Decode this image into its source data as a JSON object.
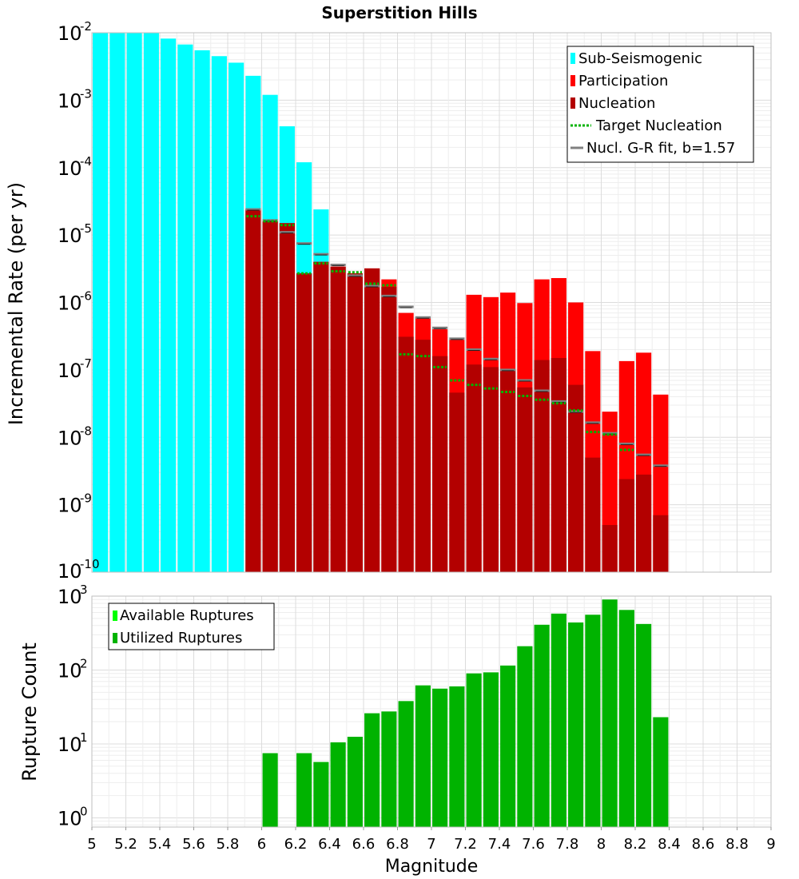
{
  "chart_data": [
    {
      "type": "bar",
      "title": "Superstition Hills",
      "ylabel": "Incremental Rate (per yr)",
      "xlabel": "",
      "xlim": [
        5,
        9
      ],
      "ylim": [
        1e-10,
        0.01
      ],
      "yscale": "log",
      "grid": true,
      "legend_position": "top-right",
      "colors": {
        "sub_seismogenic": "#00ffff",
        "participation": "#ff0000",
        "nucleation": "#b30000",
        "target_nucleation": "#00b300",
        "gr_fit": "#808080"
      },
      "yticks": [
        {
          "base": "10",
          "exp": "-2",
          "value": 0.01
        },
        {
          "base": "10",
          "exp": "-3",
          "value": 0.001
        },
        {
          "base": "10",
          "exp": "-4",
          "value": 0.0001
        },
        {
          "base": "10",
          "exp": "-5",
          "value": 1e-05
        },
        {
          "base": "10",
          "exp": "-6",
          "value": 1e-06
        },
        {
          "base": "10",
          "exp": "-7",
          "value": 1e-07
        },
        {
          "base": "10",
          "exp": "-8",
          "value": 1e-08
        },
        {
          "base": "10",
          "exp": "-9",
          "value": 1e-09
        },
        {
          "base": "10",
          "exp": "-10",
          "value": 1e-10
        }
      ],
      "legend": [
        {
          "label": "Sub-Seismogenic",
          "swatch": "bar",
          "color": "#00ffff"
        },
        {
          "label": "Participation",
          "swatch": "bar",
          "color": "#ff0000"
        },
        {
          "label": "Nucleation",
          "swatch": "bar",
          "color": "#b30000"
        },
        {
          "label": "Target Nucleation",
          "swatch": "dotted",
          "color": "#00b300"
        },
        {
          "label": "Nucl. G-R fit, b=1.57",
          "swatch": "line",
          "color": "#808080"
        }
      ],
      "bar_width": 0.09,
      "series": [
        {
          "name": "Sub-Seismogenic",
          "x": [
            5.05,
            5.15,
            5.25,
            5.35,
            5.45,
            5.55,
            5.65,
            5.75,
            5.85,
            5.95,
            6.05,
            6.15,
            6.25,
            6.35
          ],
          "values": [
            0.01,
            0.01,
            0.01,
            0.01,
            0.0082,
            0.0067,
            0.0055,
            0.0045,
            0.0036,
            0.0023,
            0.0012,
            0.00041,
            0.00012,
            2.4e-05
          ]
        },
        {
          "name": "Participation",
          "x": [
            5.95,
            6.05,
            6.15,
            6.25,
            6.35,
            6.45,
            6.55,
            6.65,
            6.75,
            6.85,
            6.95,
            7.05,
            7.15,
            7.25,
            7.35,
            7.45,
            7.55,
            7.65,
            7.75,
            7.85,
            7.95,
            8.05,
            8.15,
            8.25,
            8.35
          ],
          "values": [
            2.4e-05,
            1.6e-05,
            1.5e-05,
            2.7e-06,
            4e-06,
            3.4e-06,
            2.7e-06,
            3.2e-06,
            2.2e-06,
            7e-07,
            6e-07,
            4e-07,
            2.8e-07,
            1.3e-06,
            1.2e-06,
            1.4e-06,
            9.8e-07,
            2.2e-06,
            2.3e-06,
            1e-06,
            1.9e-07,
            2.4e-08,
            1.35e-07,
            1.8e-07,
            4.3e-08
          ]
        },
        {
          "name": "Nucleation",
          "x": [
            5.95,
            6.05,
            6.15,
            6.25,
            6.35,
            6.45,
            6.55,
            6.65,
            6.75,
            6.85,
            6.95,
            7.05,
            7.15,
            7.25,
            7.35,
            7.45,
            7.55,
            7.65,
            7.75,
            7.85,
            7.95,
            8.05,
            8.15,
            8.25,
            8.35
          ],
          "values": [
            2.4e-05,
            1.6e-05,
            1.5e-05,
            2.7e-06,
            4e-06,
            3.4e-06,
            2.7e-06,
            3.2e-06,
            1.7e-06,
            3.1e-07,
            2.8e-07,
            1.6e-07,
            4.6e-08,
            1.2e-07,
            1.1e-07,
            1e-07,
            5.5e-08,
            1.4e-07,
            1.5e-07,
            6e-08,
            5e-09,
            5e-10,
            2.4e-09,
            2.8e-09,
            7e-10
          ]
        },
        {
          "name": "Target Nucleation",
          "x": [
            5.95,
            6.05,
            6.15,
            6.25,
            6.35,
            6.45,
            6.55,
            6.65,
            6.75,
            6.85,
            6.95,
            7.05,
            7.15,
            7.25,
            7.35,
            7.45,
            7.55,
            7.65,
            7.75,
            7.85,
            7.95,
            8.05,
            8.15,
            8.25
          ],
          "values": [
            1.9e-05,
            1.6e-05,
            1.4e-05,
            2.7e-06,
            3.8e-06,
            2.9e-06,
            2.8e-06,
            1.9e-06,
            1.8e-06,
            1.7e-07,
            1.6e-07,
            1.1e-07,
            7e-08,
            6e-08,
            5.3e-08,
            4.7e-08,
            4.1e-08,
            3.6e-08,
            3.2e-08,
            2.5e-08,
            1.2e-08,
            1.1e-08,
            6.5e-09,
            0
          ]
        },
        {
          "name": "Nucl. G-R fit, b=1.57",
          "x": [
            5.95,
            6.05,
            6.15,
            6.25,
            6.35,
            6.45,
            6.55,
            6.65,
            6.75,
            6.85,
            6.95,
            7.05,
            7.15,
            7.25,
            7.35,
            7.45,
            7.55,
            7.65,
            7.75,
            7.85,
            7.95,
            8.05,
            8.15,
            8.25,
            8.35
          ],
          "values": [
            2.4e-05,
            1.65e-05,
            1.1e-05,
            7.5e-06,
            5.2e-06,
            3.6e-06,
            2.5e-06,
            1.75e-06,
            1.25e-06,
            8.6e-07,
            6e-07,
            4.2e-07,
            2.9e-07,
            2e-07,
            1.45e-07,
            1e-07,
            7e-08,
            4.9e-08,
            3.4e-08,
            2.4e-08,
            1.65e-08,
            1.15e-08,
            8e-09,
            5.5e-09,
            3.8e-09
          ]
        }
      ]
    },
    {
      "type": "bar",
      "title": "",
      "ylabel": "Rupture Count",
      "xlabel": "Magnitude",
      "xlim": [
        5,
        9
      ],
      "ylim": [
        0.75,
        1000
      ],
      "yscale": "log",
      "grid": true,
      "legend_position": "top-left",
      "colors": {
        "available": "#00ff00",
        "utilized": "#00b300"
      },
      "yticks": [
        {
          "base": "10",
          "exp": "3",
          "value": 1000
        },
        {
          "base": "10",
          "exp": "2",
          "value": 100
        },
        {
          "base": "10",
          "exp": "1",
          "value": 10
        },
        {
          "base": "10",
          "exp": "0",
          "value": 1
        }
      ],
      "xticks": [
        "5",
        "5.2",
        "5.4",
        "5.6",
        "5.8",
        "6",
        "6.2",
        "6.4",
        "6.6",
        "6.8",
        "7",
        "7.2",
        "7.4",
        "7.6",
        "7.8",
        "8",
        "8.2",
        "8.4",
        "8.6",
        "8.8",
        "9"
      ],
      "legend": [
        {
          "label": "Available Ruptures",
          "swatch": "bar",
          "color": "#00ff00"
        },
        {
          "label": "Utilized Ruptures",
          "swatch": "bar",
          "color": "#00b300"
        }
      ],
      "bar_width": 0.09,
      "series": [
        {
          "name": "Utilized Ruptures",
          "x": [
            6.05,
            6.25,
            6.35,
            6.45,
            6.55,
            6.65,
            6.75,
            6.85,
            6.95,
            7.05,
            7.15,
            7.25,
            7.35,
            7.45,
            7.55,
            7.65,
            7.75,
            7.85,
            7.95,
            8.05,
            8.15,
            8.25,
            8.35
          ],
          "values": [
            7.5,
            7.5,
            5.7,
            10.5,
            12.5,
            26,
            27.5,
            38,
            62,
            56,
            60,
            90,
            93,
            115,
            210,
            410,
            580,
            440,
            560,
            900,
            650,
            420,
            23
          ]
        }
      ]
    }
  ]
}
